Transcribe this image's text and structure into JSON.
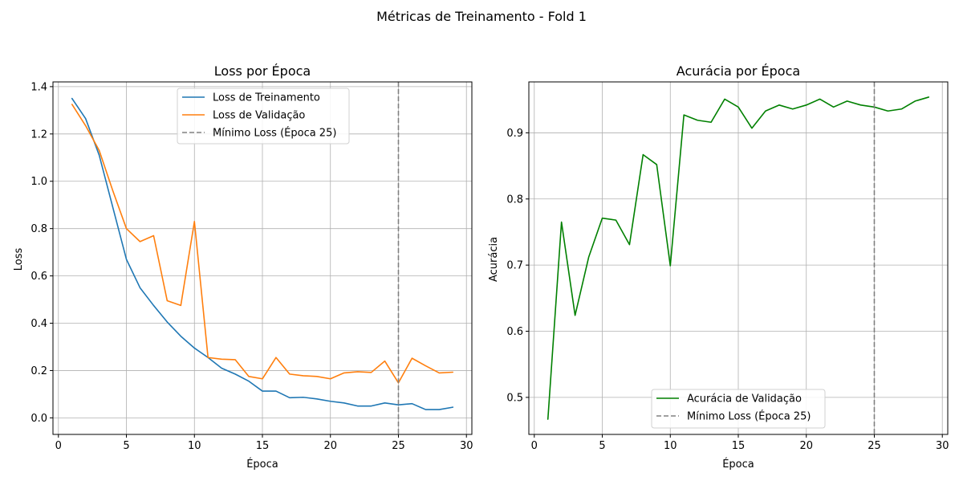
{
  "figure": {
    "title": "Métricas de Treinamento - Fold 1"
  },
  "chart_data": [
    {
      "type": "line",
      "title": "Loss por Época",
      "xlabel": "Época",
      "ylabel": "Loss",
      "xlim": [
        -0.4,
        30.4
      ],
      "ylim": [
        -0.07,
        1.42
      ],
      "xticks": [
        0,
        5,
        10,
        15,
        20,
        25,
        30
      ],
      "yticks": [
        0.0,
        0.2,
        0.4,
        0.6,
        0.8,
        1.0,
        1.2,
        1.4
      ],
      "ytick_format": 1,
      "grid": true,
      "legend_position": "upper center",
      "x": [
        1,
        2,
        3,
        4,
        5,
        6,
        7,
        8,
        9,
        10,
        11,
        12,
        13,
        14,
        15,
        16,
        17,
        18,
        19,
        20,
        21,
        22,
        23,
        24,
        25,
        26,
        27,
        28,
        29
      ],
      "series": [
        {
          "name": "Loss de Treinamento",
          "color": "#1f77b4",
          "values": [
            1.35,
            1.265,
            1.11,
            0.89,
            0.67,
            0.55,
            0.475,
            0.405,
            0.345,
            0.295,
            0.255,
            0.21,
            0.185,
            0.155,
            0.113,
            0.113,
            0.085,
            0.087,
            0.08,
            0.07,
            0.063,
            0.05,
            0.05,
            0.063,
            0.055,
            0.06,
            0.035,
            0.035,
            0.045
          ]
        },
        {
          "name": "Loss de Validação",
          "color": "#ff7f0e",
          "values": [
            1.325,
            1.235,
            1.13,
            0.96,
            0.8,
            0.745,
            0.77,
            0.495,
            0.475,
            0.83,
            0.255,
            0.248,
            0.246,
            0.175,
            0.165,
            0.255,
            0.185,
            0.178,
            0.175,
            0.165,
            0.19,
            0.195,
            0.192,
            0.24,
            0.148,
            0.252,
            0.22,
            0.19,
            0.193
          ]
        }
      ],
      "vline": {
        "x": 25,
        "label": "Mínimo Loss (Época 25)",
        "color": "#808080"
      }
    },
    {
      "type": "line",
      "title": "Acurácia por Época",
      "xlabel": "Época",
      "ylabel": "Acurácia",
      "xlim": [
        -0.4,
        30.4
      ],
      "ylim": [
        0.444,
        0.977
      ],
      "xticks": [
        0,
        5,
        10,
        15,
        20,
        25,
        30
      ],
      "yticks": [
        0.5,
        0.6,
        0.7,
        0.8,
        0.9
      ],
      "ytick_format": 1,
      "grid": true,
      "legend_position": "lower center",
      "x": [
        1,
        2,
        3,
        4,
        5,
        6,
        7,
        8,
        9,
        10,
        11,
        12,
        13,
        14,
        15,
        16,
        17,
        18,
        19,
        20,
        21,
        22,
        23,
        24,
        25,
        26,
        27,
        28,
        29
      ],
      "series": [
        {
          "name": "Acurácia de Validação",
          "color": "#008000",
          "values": [
            0.467,
            0.765,
            0.624,
            0.712,
            0.771,
            0.768,
            0.731,
            0.867,
            0.852,
            0.699,
            0.927,
            0.919,
            0.916,
            0.951,
            0.939,
            0.907,
            0.933,
            0.942,
            0.936,
            0.942,
            0.951,
            0.939,
            0.948,
            0.942,
            0.939,
            0.933,
            0.936,
            0.948,
            0.954
          ]
        }
      ],
      "vline": {
        "x": 25,
        "label": "Mínimo Loss (Época 25)",
        "color": "#808080"
      }
    }
  ]
}
